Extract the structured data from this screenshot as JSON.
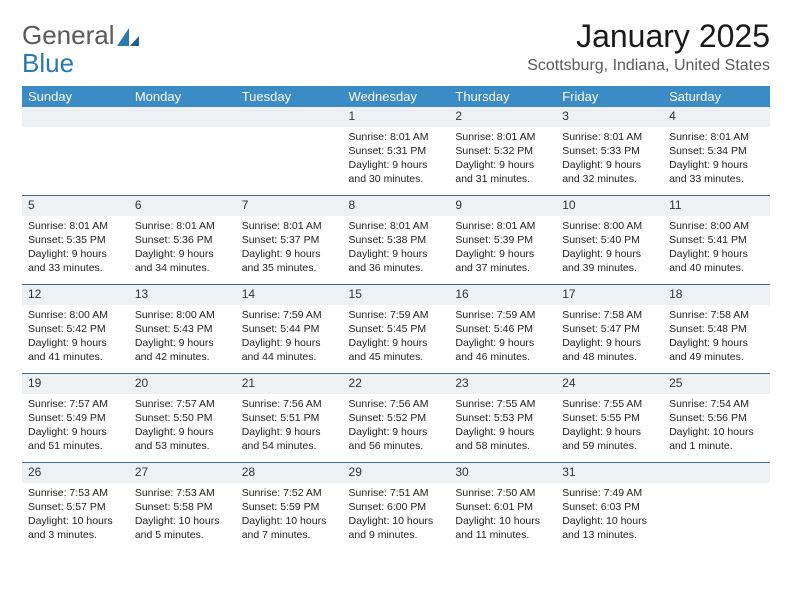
{
  "logo": {
    "part1": "General",
    "part2": "Blue"
  },
  "title": "January 2025",
  "location": "Scottsburg, Indiana, United States",
  "colors": {
    "header_bg": "#3b8bc4",
    "header_text": "#ffffff",
    "daynum_bg": "#edf1f3",
    "border": "#4a6a8a",
    "logo_gray": "#5a5a5a",
    "logo_blue": "#2a7ab0"
  },
  "weekdays": [
    "Sunday",
    "Monday",
    "Tuesday",
    "Wednesday",
    "Thursday",
    "Friday",
    "Saturday"
  ],
  "weeks": [
    [
      {
        "blank": true
      },
      {
        "blank": true
      },
      {
        "blank": true
      },
      {
        "num": "1",
        "sunrise": "Sunrise: 8:01 AM",
        "sunset": "Sunset: 5:31 PM",
        "day1": "Daylight: 9 hours",
        "day2": "and 30 minutes."
      },
      {
        "num": "2",
        "sunrise": "Sunrise: 8:01 AM",
        "sunset": "Sunset: 5:32 PM",
        "day1": "Daylight: 9 hours",
        "day2": "and 31 minutes."
      },
      {
        "num": "3",
        "sunrise": "Sunrise: 8:01 AM",
        "sunset": "Sunset: 5:33 PM",
        "day1": "Daylight: 9 hours",
        "day2": "and 32 minutes."
      },
      {
        "num": "4",
        "sunrise": "Sunrise: 8:01 AM",
        "sunset": "Sunset: 5:34 PM",
        "day1": "Daylight: 9 hours",
        "day2": "and 33 minutes."
      }
    ],
    [
      {
        "num": "5",
        "sunrise": "Sunrise: 8:01 AM",
        "sunset": "Sunset: 5:35 PM",
        "day1": "Daylight: 9 hours",
        "day2": "and 33 minutes."
      },
      {
        "num": "6",
        "sunrise": "Sunrise: 8:01 AM",
        "sunset": "Sunset: 5:36 PM",
        "day1": "Daylight: 9 hours",
        "day2": "and 34 minutes."
      },
      {
        "num": "7",
        "sunrise": "Sunrise: 8:01 AM",
        "sunset": "Sunset: 5:37 PM",
        "day1": "Daylight: 9 hours",
        "day2": "and 35 minutes."
      },
      {
        "num": "8",
        "sunrise": "Sunrise: 8:01 AM",
        "sunset": "Sunset: 5:38 PM",
        "day1": "Daylight: 9 hours",
        "day2": "and 36 minutes."
      },
      {
        "num": "9",
        "sunrise": "Sunrise: 8:01 AM",
        "sunset": "Sunset: 5:39 PM",
        "day1": "Daylight: 9 hours",
        "day2": "and 37 minutes."
      },
      {
        "num": "10",
        "sunrise": "Sunrise: 8:00 AM",
        "sunset": "Sunset: 5:40 PM",
        "day1": "Daylight: 9 hours",
        "day2": "and 39 minutes."
      },
      {
        "num": "11",
        "sunrise": "Sunrise: 8:00 AM",
        "sunset": "Sunset: 5:41 PM",
        "day1": "Daylight: 9 hours",
        "day2": "and 40 minutes."
      }
    ],
    [
      {
        "num": "12",
        "sunrise": "Sunrise: 8:00 AM",
        "sunset": "Sunset: 5:42 PM",
        "day1": "Daylight: 9 hours",
        "day2": "and 41 minutes."
      },
      {
        "num": "13",
        "sunrise": "Sunrise: 8:00 AM",
        "sunset": "Sunset: 5:43 PM",
        "day1": "Daylight: 9 hours",
        "day2": "and 42 minutes."
      },
      {
        "num": "14",
        "sunrise": "Sunrise: 7:59 AM",
        "sunset": "Sunset: 5:44 PM",
        "day1": "Daylight: 9 hours",
        "day2": "and 44 minutes."
      },
      {
        "num": "15",
        "sunrise": "Sunrise: 7:59 AM",
        "sunset": "Sunset: 5:45 PM",
        "day1": "Daylight: 9 hours",
        "day2": "and 45 minutes."
      },
      {
        "num": "16",
        "sunrise": "Sunrise: 7:59 AM",
        "sunset": "Sunset: 5:46 PM",
        "day1": "Daylight: 9 hours",
        "day2": "and 46 minutes."
      },
      {
        "num": "17",
        "sunrise": "Sunrise: 7:58 AM",
        "sunset": "Sunset: 5:47 PM",
        "day1": "Daylight: 9 hours",
        "day2": "and 48 minutes."
      },
      {
        "num": "18",
        "sunrise": "Sunrise: 7:58 AM",
        "sunset": "Sunset: 5:48 PM",
        "day1": "Daylight: 9 hours",
        "day2": "and 49 minutes."
      }
    ],
    [
      {
        "num": "19",
        "sunrise": "Sunrise: 7:57 AM",
        "sunset": "Sunset: 5:49 PM",
        "day1": "Daylight: 9 hours",
        "day2": "and 51 minutes."
      },
      {
        "num": "20",
        "sunrise": "Sunrise: 7:57 AM",
        "sunset": "Sunset: 5:50 PM",
        "day1": "Daylight: 9 hours",
        "day2": "and 53 minutes."
      },
      {
        "num": "21",
        "sunrise": "Sunrise: 7:56 AM",
        "sunset": "Sunset: 5:51 PM",
        "day1": "Daylight: 9 hours",
        "day2": "and 54 minutes."
      },
      {
        "num": "22",
        "sunrise": "Sunrise: 7:56 AM",
        "sunset": "Sunset: 5:52 PM",
        "day1": "Daylight: 9 hours",
        "day2": "and 56 minutes."
      },
      {
        "num": "23",
        "sunrise": "Sunrise: 7:55 AM",
        "sunset": "Sunset: 5:53 PM",
        "day1": "Daylight: 9 hours",
        "day2": "and 58 minutes."
      },
      {
        "num": "24",
        "sunrise": "Sunrise: 7:55 AM",
        "sunset": "Sunset: 5:55 PM",
        "day1": "Daylight: 9 hours",
        "day2": "and 59 minutes."
      },
      {
        "num": "25",
        "sunrise": "Sunrise: 7:54 AM",
        "sunset": "Sunset: 5:56 PM",
        "day1": "Daylight: 10 hours",
        "day2": "and 1 minute."
      }
    ],
    [
      {
        "num": "26",
        "sunrise": "Sunrise: 7:53 AM",
        "sunset": "Sunset: 5:57 PM",
        "day1": "Daylight: 10 hours",
        "day2": "and 3 minutes."
      },
      {
        "num": "27",
        "sunrise": "Sunrise: 7:53 AM",
        "sunset": "Sunset: 5:58 PM",
        "day1": "Daylight: 10 hours",
        "day2": "and 5 minutes."
      },
      {
        "num": "28",
        "sunrise": "Sunrise: 7:52 AM",
        "sunset": "Sunset: 5:59 PM",
        "day1": "Daylight: 10 hours",
        "day2": "and 7 minutes."
      },
      {
        "num": "29",
        "sunrise": "Sunrise: 7:51 AM",
        "sunset": "Sunset: 6:00 PM",
        "day1": "Daylight: 10 hours",
        "day2": "and 9 minutes."
      },
      {
        "num": "30",
        "sunrise": "Sunrise: 7:50 AM",
        "sunset": "Sunset: 6:01 PM",
        "day1": "Daylight: 10 hours",
        "day2": "and 11 minutes."
      },
      {
        "num": "31",
        "sunrise": "Sunrise: 7:49 AM",
        "sunset": "Sunset: 6:03 PM",
        "day1": "Daylight: 10 hours",
        "day2": "and 13 minutes."
      },
      {
        "blank": true
      }
    ]
  ]
}
